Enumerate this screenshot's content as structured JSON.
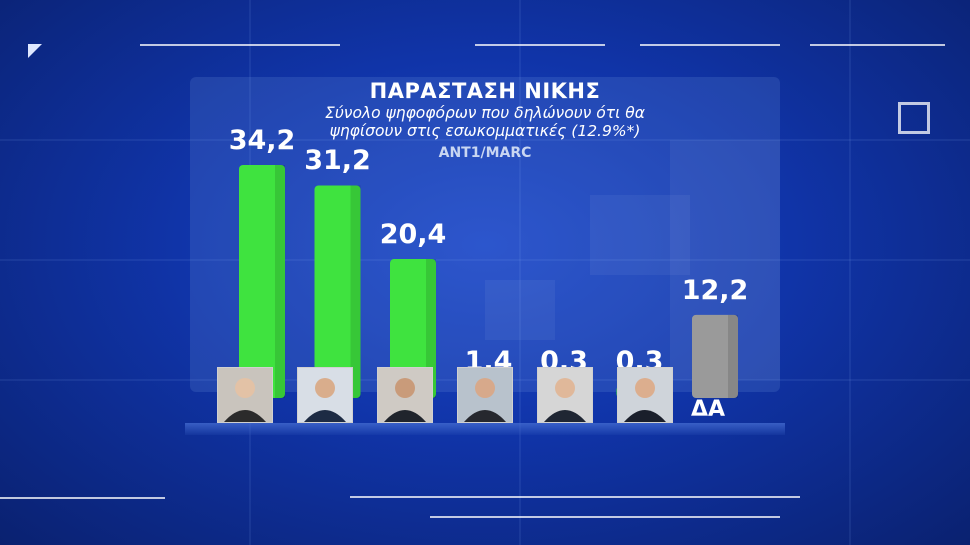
{
  "title": "ΠΑΡΑΣΤΑΣΗ ΝΙΚΗΣ",
  "subtitle_line1": "Σύνολο ψηφοφόρων που δηλώνουν ότι θα",
  "subtitle_line2": "ψηφίσουν στις εσωκομματικές (12.9%*)",
  "source": "ANT1/MARC",
  "colors": {
    "bar_green": "#3fe33f",
    "bar_gray": "#9a9a9a",
    "background": "#1034a8"
  },
  "chart_data": {
    "type": "bar",
    "categories": [
      "candidate-1",
      "candidate-2",
      "candidate-3",
      "candidate-4",
      "candidate-5",
      "candidate-6",
      "ΔΑ"
    ],
    "values": [
      34.2,
      31.2,
      20.4,
      1.4,
      0.3,
      0.3,
      12.2
    ],
    "value_labels": [
      "34,2",
      "31,2",
      "20,4",
      "1,4",
      "0,3",
      "0,3",
      "12,2"
    ],
    "bar_colors": [
      "#3fe33f",
      "#3fe33f",
      "#3fe33f",
      "#3fe33f",
      "#3fe33f",
      "#3fe33f",
      "#9a9a9a"
    ],
    "category_label_last": "ΔΑ",
    "title": "ΠΑΡΑΣΤΑΣΗ ΝΙΚΗΣ",
    "ylim": [
      0,
      34.2
    ],
    "grid": false
  }
}
